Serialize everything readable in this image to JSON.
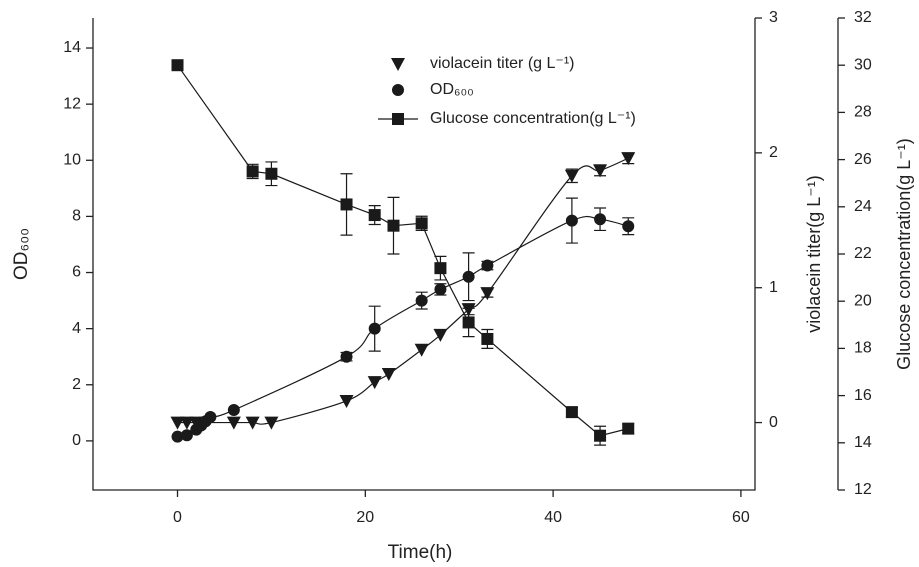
{
  "chart_data": {
    "type": "scatter",
    "x_label": "Time(h)",
    "y_label": "OD₆₀₀",
    "y2_label": "violacein titer(g L⁻¹)",
    "y3_label": "Glucose concentration(g L⁻¹)",
    "xlim": [
      -9,
      61.5
    ],
    "xticks": [
      0,
      20,
      40,
      60
    ],
    "ylim": [
      -1.75,
      15.07
    ],
    "yticks": [
      0,
      2,
      4,
      6,
      8,
      10,
      12,
      14
    ],
    "y2lim": [
      -0.5,
      3
    ],
    "y2ticks": [
      0,
      1,
      2,
      3
    ],
    "y3lim": [
      12,
      32
    ],
    "y3ticks": [
      12,
      14,
      16,
      18,
      20,
      22,
      24,
      26,
      28,
      30,
      32
    ],
    "series": [
      {
        "name": "violacein titer (g L⁻¹)",
        "color": "#1a1a1a",
        "marker": "triangle-down",
        "axis": "y2",
        "curve": true,
        "legend_line": false,
        "x": [
          0,
          1,
          2,
          3,
          6,
          8,
          10,
          18,
          21,
          22.5,
          26,
          28,
          31,
          33,
          42,
          45,
          48
        ],
        "values": [
          0,
          0,
          0,
          0,
          0,
          0,
          0,
          0.16,
          0.3,
          0.36,
          0.54,
          0.65,
          0.84,
          0.96,
          1.83,
          1.87,
          1.96
        ],
        "errors": [
          null,
          null,
          null,
          null,
          null,
          null,
          null,
          null,
          null,
          null,
          null,
          null,
          0.04,
          0.03,
          0.05,
          0.04,
          0.04
        ]
      },
      {
        "name": "OD₆₀₀",
        "color": "#1a1a1a",
        "marker": "circle",
        "axis": "y",
        "curve": true,
        "legend_line": false,
        "x": [
          0,
          1,
          2,
          2.5,
          3,
          3.5,
          6,
          18,
          21,
          26,
          28,
          31,
          33,
          42,
          45,
          48
        ],
        "values": [
          0.15,
          0.2,
          0.4,
          0.55,
          0.7,
          0.85,
          1.1,
          3,
          4,
          5,
          5.4,
          5.85,
          6.25,
          7.85,
          7.9,
          7.65
        ],
        "errors": [
          null,
          null,
          null,
          null,
          null,
          null,
          null,
          0.15,
          0.8,
          0.3,
          0.2,
          0.85,
          0.15,
          0.8,
          0.4,
          0.3
        ]
      },
      {
        "name": "Glucose concentration(g L⁻¹)",
        "color": "#1a1a1a",
        "marker": "square",
        "axis": "y3",
        "curve": false,
        "legend_line": true,
        "x": [
          0,
          8,
          10,
          18,
          21,
          23,
          26,
          28,
          31,
          33,
          42,
          45,
          48
        ],
        "values": [
          30,
          25.5,
          25.4,
          24.1,
          23.65,
          23.2,
          23.3,
          21.4,
          19.1,
          18.4,
          15.3,
          14.3,
          14.6
        ],
        "errors": [
          null,
          0.3,
          0.5,
          1.3,
          0.4,
          1.2,
          0.3,
          0.5,
          0.6,
          0.4,
          0.2,
          0.4,
          0.2
        ]
      }
    ]
  }
}
